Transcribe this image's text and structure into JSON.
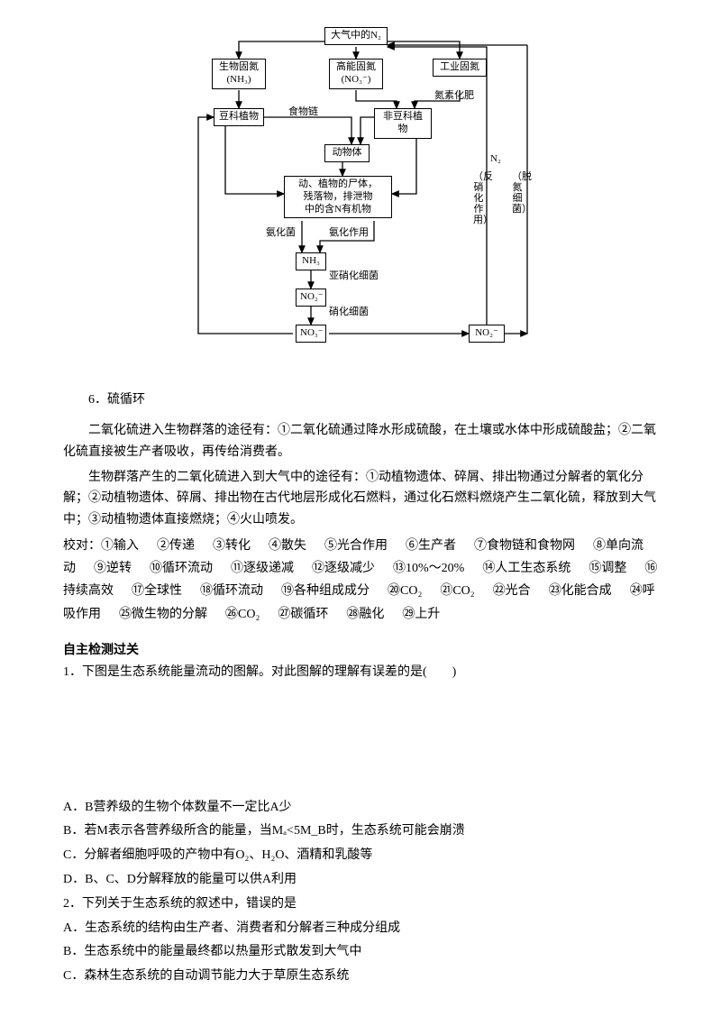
{
  "diagram": {
    "top": "大气中的N₂",
    "bio_fix": "生物固氮",
    "bio_fix_sub": "(NH₃)",
    "high_fix": "高能固氮",
    "high_fix_sub": "(NO₃⁻)",
    "ind_fix": "工业固氮",
    "ind_fix_sub": "氮素化肥",
    "legume": "豆科植物",
    "nonlegume": "非豆科植物",
    "food_chain": "食物链",
    "animal": "动物体",
    "remains_l1": "动、植物的尸体，",
    "remains_l2": "残落物，排泄物",
    "remains_l3": "中的含N有机物",
    "ammon_bact": "氨化菌",
    "ammon_act": "氨化作用",
    "nh3": "NH₃",
    "nitros": "亚硝化细菌",
    "no2": "NO₂⁻",
    "nitrob": "硝化细菌",
    "no3": "NO₃⁻",
    "no2_out": "NO₂⁻",
    "denit_proc": "反硝化作用",
    "denit_bact": "脱氮细菌",
    "n2_small": "N₂"
  },
  "section6": "6．硫循环",
  "para1": "二氧化硫进入生物群落的途径有：①二氧化硫通过降水形成硫酸，在土壤或水体中形成硫酸盐；②二氧化硫直接被生产者吸收，再传给消费者。",
  "para2": "生物群落产生的二氧化硫进入到大气中的途径有：①动植物遗体、碎屑、排出物通过分解者的氧化分解；②动植物遗体、碎屑、排出物在古代地层形成化石燃料，通过化石燃料燃烧产生二氧化硫，释放到大气中；③动植物遗体直接燃烧；④火山喷发。",
  "answers_label": "校对：",
  "answers": [
    "①输入",
    "②传递",
    "③转化",
    "④散失",
    "⑤光合作用",
    "⑥生产者",
    "⑦食物链和食物网",
    "⑧单向流动",
    "⑨逆转",
    "⑩循环流动",
    "⑪逐级递减",
    "⑫逐级减少",
    "⑬10%～20%",
    "⑭人工生态系统",
    "⑮调整",
    "⑯持续高效",
    "⑰全球性",
    "⑱循环流动",
    "⑲各种组成成分",
    "⑳CO₂",
    "㉑CO₂",
    "㉒光合",
    "㉓化能合成",
    "㉔呼吸作用",
    "㉕微生物的分解",
    "㉖CO₂",
    "㉗碳循环",
    "㉘融化",
    "㉙上升"
  ],
  "self_test_heading": "自主检测过关",
  "q1_stem": "1．下图是生态系统能量流动的图解。对此图解的理解有误差的是(　　)",
  "q1_opts": [
    "A．B营养级的生物个体数量不一定比A少",
    "B．若M表示各营养级所含的能量，当Mₐ<5M_B时，生态系统可能会崩溃",
    "C．分解者细胞呼吸的产物中有O₂、H₂O、酒精和乳酸等",
    "D．B、C、D分解释放的能量可以供A利用"
  ],
  "q2_stem": "2．下列关于生态系统的叙述中，错误的是",
  "q2_opts": [
    "A．生态系统的结构由生产者、消费者和分解者三种成分组成",
    "B．生态系统中的能量最终都以热量形式散发到大气中",
    "C．森林生态系统的自动调节能力大于草原生态系统"
  ]
}
